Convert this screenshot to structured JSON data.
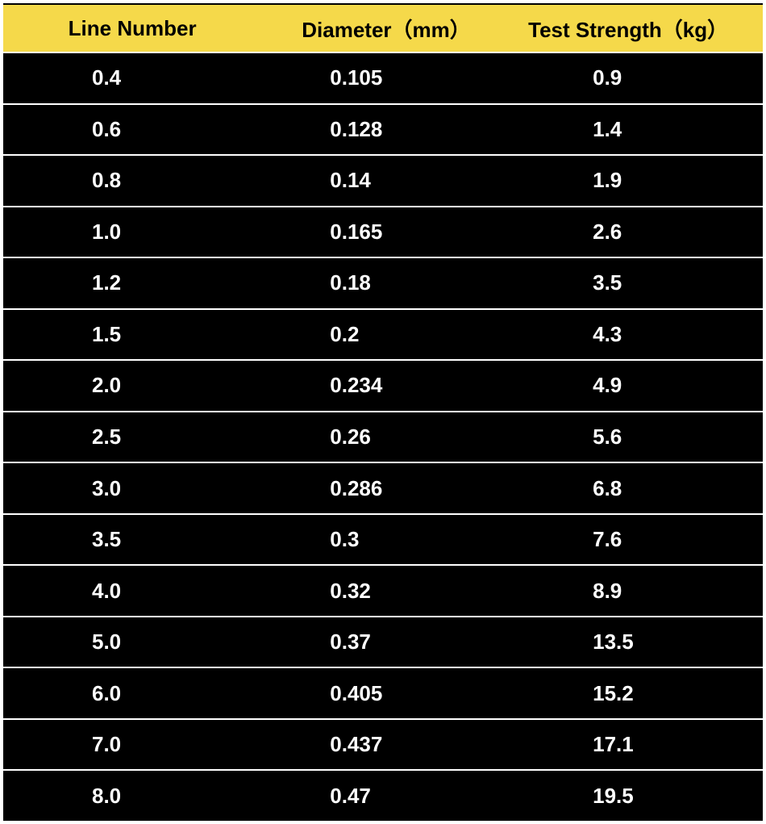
{
  "table": {
    "type": "table",
    "background_color": "#000000",
    "row_divider_color": "#ffffff",
    "row_divider_width": 2,
    "header": {
      "background_color": "#f5d94a",
      "text_color": "#000000",
      "font_size_pt": 26,
      "font_weight": "700",
      "columns": [
        "Line Number",
        "Diameter（mm）",
        "Test Strength（kg）"
      ]
    },
    "body": {
      "text_color": "#ffffff",
      "font_size_pt": 26,
      "font_weight": "700"
    },
    "columns": [
      {
        "key": "line_number",
        "align": "left",
        "width_pct": 34
      },
      {
        "key": "diameter_mm",
        "align": "left",
        "width_pct": 33
      },
      {
        "key": "test_strength_kg",
        "align": "left",
        "width_pct": 33
      }
    ],
    "rows": [
      [
        "0.4",
        "0.105",
        "0.9"
      ],
      [
        "0.6",
        "0.128",
        "1.4"
      ],
      [
        "0.8",
        "0.14",
        "1.9"
      ],
      [
        "1.0",
        "0.165",
        "2.6"
      ],
      [
        "1.2",
        "0.18",
        "3.5"
      ],
      [
        "1.5",
        "0.2",
        "4.3"
      ],
      [
        "2.0",
        "0.234",
        "4.9"
      ],
      [
        "2.5",
        "0.26",
        "5.6"
      ],
      [
        "3.0",
        "0.286",
        "6.8"
      ],
      [
        "3.5",
        "0.3",
        "7.6"
      ],
      [
        "4.0",
        "0.32",
        "8.9"
      ],
      [
        "5.0",
        "0.37",
        "13.5"
      ],
      [
        "6.0",
        "0.405",
        "15.2"
      ],
      [
        "7.0",
        "0.437",
        "17.1"
      ],
      [
        "8.0",
        "0.47",
        "19.5"
      ]
    ]
  }
}
